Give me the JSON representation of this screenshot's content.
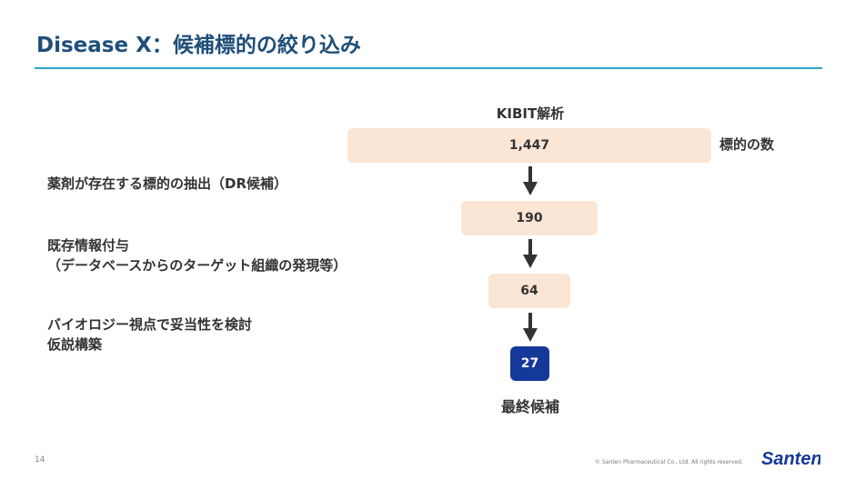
{
  "slide": {
    "title": "Disease X：候補標的の絞り込み",
    "page_number": "14",
    "copyright": "© Santen Pharmaceutical Co., Ltd. All rights reserved.",
    "logo_text": "Santen"
  },
  "funnel": {
    "method_label": "KIBIT解析",
    "count_label": "標的の数",
    "final_label": "最終候補",
    "stages": [
      "1,447",
      "190",
      "64",
      "27"
    ]
  },
  "steps": [
    {
      "lines": [
        "薬剤が存在する標的の抽出（DR候補）"
      ]
    },
    {
      "lines": [
        "既存情報付与",
        "（データベースからのターゲット組織の発現等）"
      ]
    },
    {
      "lines": [
        "バイオロジー視点で妥当性を検討",
        "仮説構築"
      ]
    }
  ],
  "colors": {
    "title": "#1f4e79",
    "title_rule": "#2ca5c9",
    "stage_fill": "#fbe6d6",
    "final_fill": "#15399a",
    "arrow": "#333333"
  }
}
